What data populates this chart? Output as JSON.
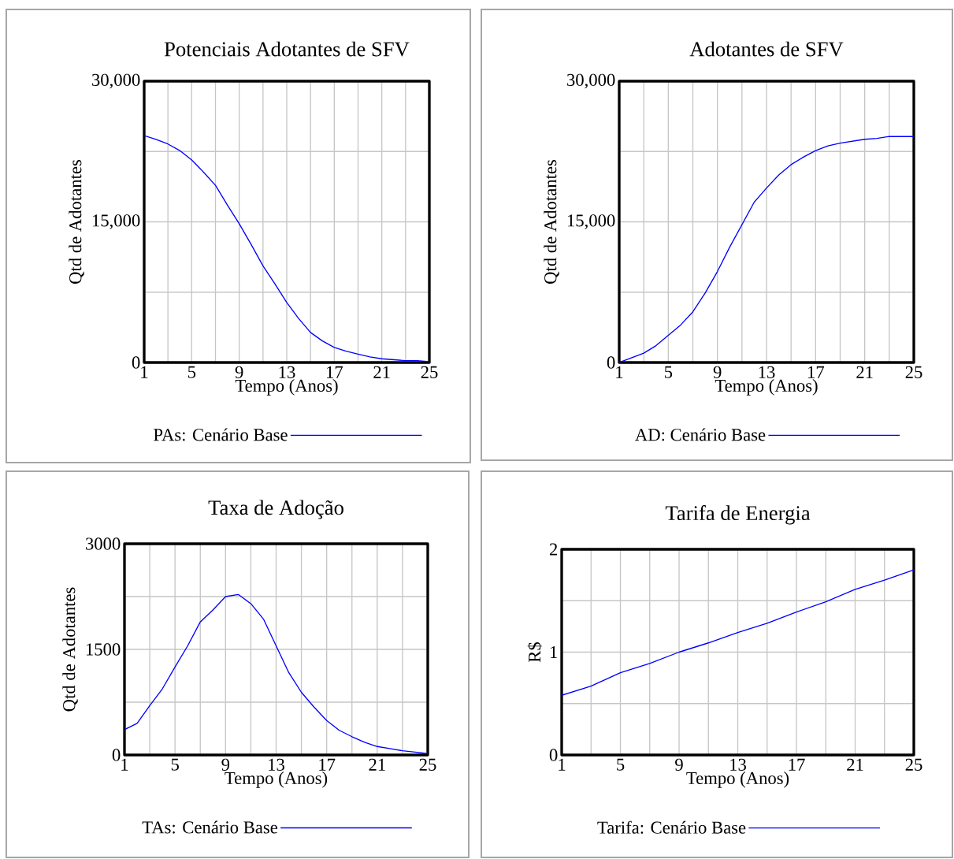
{
  "chart_data": [
    {
      "type": "line",
      "title": "Potenciais Adotantes de SFV",
      "xlabel": "Tempo (Anos)",
      "ylabel": "Qtd de Adotantes",
      "x": [
        1,
        2,
        3,
        4,
        5,
        6,
        7,
        8,
        9,
        10,
        11,
        12,
        13,
        14,
        15,
        16,
        17,
        18,
        19,
        20,
        21,
        22,
        23,
        24,
        25
      ],
      "series": [
        {
          "name": "PAs: Cenário Base",
          "color": "#0000ff",
          "values": [
            24200,
            23800,
            23300,
            22600,
            21600,
            20300,
            18900,
            16800,
            14800,
            12600,
            10300,
            8400,
            6400,
            4700,
            3200,
            2300,
            1600,
            1200,
            900,
            600,
            400,
            300,
            200,
            200,
            100
          ]
        }
      ],
      "xlim": [
        1,
        25
      ],
      "ylim": [
        0,
        30000
      ],
      "xticks": [
        1,
        {
          "value": 3,
          "label": null
        },
        5,
        {
          "value": 7,
          "label": null
        },
        9,
        {
          "value": 11,
          "label": null
        },
        13,
        {
          "value": 15,
          "label": null
        },
        17,
        {
          "value": 19,
          "label": null
        },
        21,
        {
          "value": 23,
          "label": null
        },
        25
      ],
      "yticks": [
        0,
        {
          "value": 7500,
          "label": null
        },
        {
          "value": 15000,
          "label": "15,000"
        },
        {
          "value": 22500,
          "label": null
        },
        {
          "value": 30000,
          "label": "30,000"
        }
      ],
      "grid": true,
      "legend": "bottom"
    },
    {
      "type": "line",
      "title": "Adotantes de SFV",
      "xlabel": "Tempo (Anos)",
      "ylabel": "Qtd de Adotantes",
      "x": [
        1,
        2,
        3,
        4,
        5,
        6,
        7,
        8,
        9,
        10,
        11,
        12,
        13,
        14,
        15,
        16,
        17,
        18,
        19,
        20,
        21,
        22,
        23,
        24,
        25
      ],
      "series": [
        {
          "name": "AD: Cenário Base",
          "color": "#0000ff",
          "values": [
            0,
            500,
            1000,
            1800,
            2900,
            4000,
            5400,
            7400,
            9700,
            12300,
            14700,
            17100,
            18600,
            20000,
            21100,
            21900,
            22600,
            23100,
            23400,
            23600,
            23800,
            23900,
            24100,
            24100,
            24100
          ]
        }
      ],
      "xlim": [
        1,
        25
      ],
      "ylim": [
        0,
        30000
      ],
      "xticks": [
        1,
        {
          "value": 3,
          "label": null
        },
        5,
        {
          "value": 7,
          "label": null
        },
        9,
        {
          "value": 11,
          "label": null
        },
        13,
        {
          "value": 15,
          "label": null
        },
        17,
        {
          "value": 19,
          "label": null
        },
        21,
        {
          "value": 23,
          "label": null
        },
        25
      ],
      "yticks": [
        0,
        {
          "value": 7500,
          "label": null
        },
        {
          "value": 15000,
          "label": "15,000"
        },
        {
          "value": 22500,
          "label": null
        },
        {
          "value": 30000,
          "label": "30,000"
        }
      ],
      "grid": true,
      "legend": "bottom"
    },
    {
      "type": "line",
      "title": "Taxa de Adoção",
      "xlabel": "Tempo (Anos)",
      "ylabel": "Qtd de Adotantes",
      "x": [
        1,
        2,
        3,
        4,
        5,
        6,
        7,
        8,
        9,
        10,
        11,
        12,
        13,
        14,
        15,
        16,
        17,
        18,
        19,
        20,
        21,
        22,
        23,
        24,
        25
      ],
      "series": [
        {
          "name": "TAs: Cenário Base",
          "color": "#0000ff",
          "values": [
            360,
            450,
            700,
            940,
            1250,
            1550,
            1890,
            2060,
            2250,
            2280,
            2150,
            1930,
            1550,
            1170,
            890,
            680,
            490,
            350,
            260,
            180,
            120,
            90,
            60,
            40,
            20
          ]
        }
      ],
      "xlim": [
        1,
        25
      ],
      "ylim": [
        0,
        3000
      ],
      "xticks": [
        1,
        {
          "value": 3,
          "label": null
        },
        5,
        {
          "value": 7,
          "label": null
        },
        9,
        {
          "value": 11,
          "label": null
        },
        13,
        {
          "value": 15,
          "label": null
        },
        17,
        {
          "value": 19,
          "label": null
        },
        21,
        {
          "value": 23,
          "label": null
        },
        25
      ],
      "yticks": [
        0,
        {
          "value": 750,
          "label": null
        },
        1500,
        {
          "value": 2250,
          "label": null
        },
        3000
      ],
      "grid": true,
      "legend": "bottom"
    },
    {
      "type": "line",
      "title": "Tarifa de Energia",
      "xlabel": "Tempo (Anos)",
      "ylabel": "R$",
      "x": [
        1,
        3,
        5,
        7,
        9,
        11,
        13,
        15,
        17,
        19,
        21,
        23,
        25
      ],
      "series": [
        {
          "name": "Tarifa: Cenário Base",
          "color": "#0000ff",
          "values": [
            0.58,
            0.67,
            0.8,
            0.89,
            1.0,
            1.09,
            1.19,
            1.28,
            1.39,
            1.49,
            1.61,
            1.7,
            1.8
          ]
        }
      ],
      "xlim": [
        1,
        25
      ],
      "ylim": [
        0,
        2
      ],
      "xticks": [
        1,
        {
          "value": 3,
          "label": null
        },
        5,
        {
          "value": 7,
          "label": null
        },
        9,
        {
          "value": 11,
          "label": null
        },
        13,
        {
          "value": 15,
          "label": null
        },
        17,
        {
          "value": 19,
          "label": null
        },
        21,
        {
          "value": 23,
          "label": null
        },
        25
      ],
      "yticks": [
        0,
        {
          "value": 0.5,
          "label": null
        },
        1,
        {
          "value": 1.5,
          "label": null
        },
        2
      ],
      "grid": true,
      "legend": "bottom"
    }
  ]
}
